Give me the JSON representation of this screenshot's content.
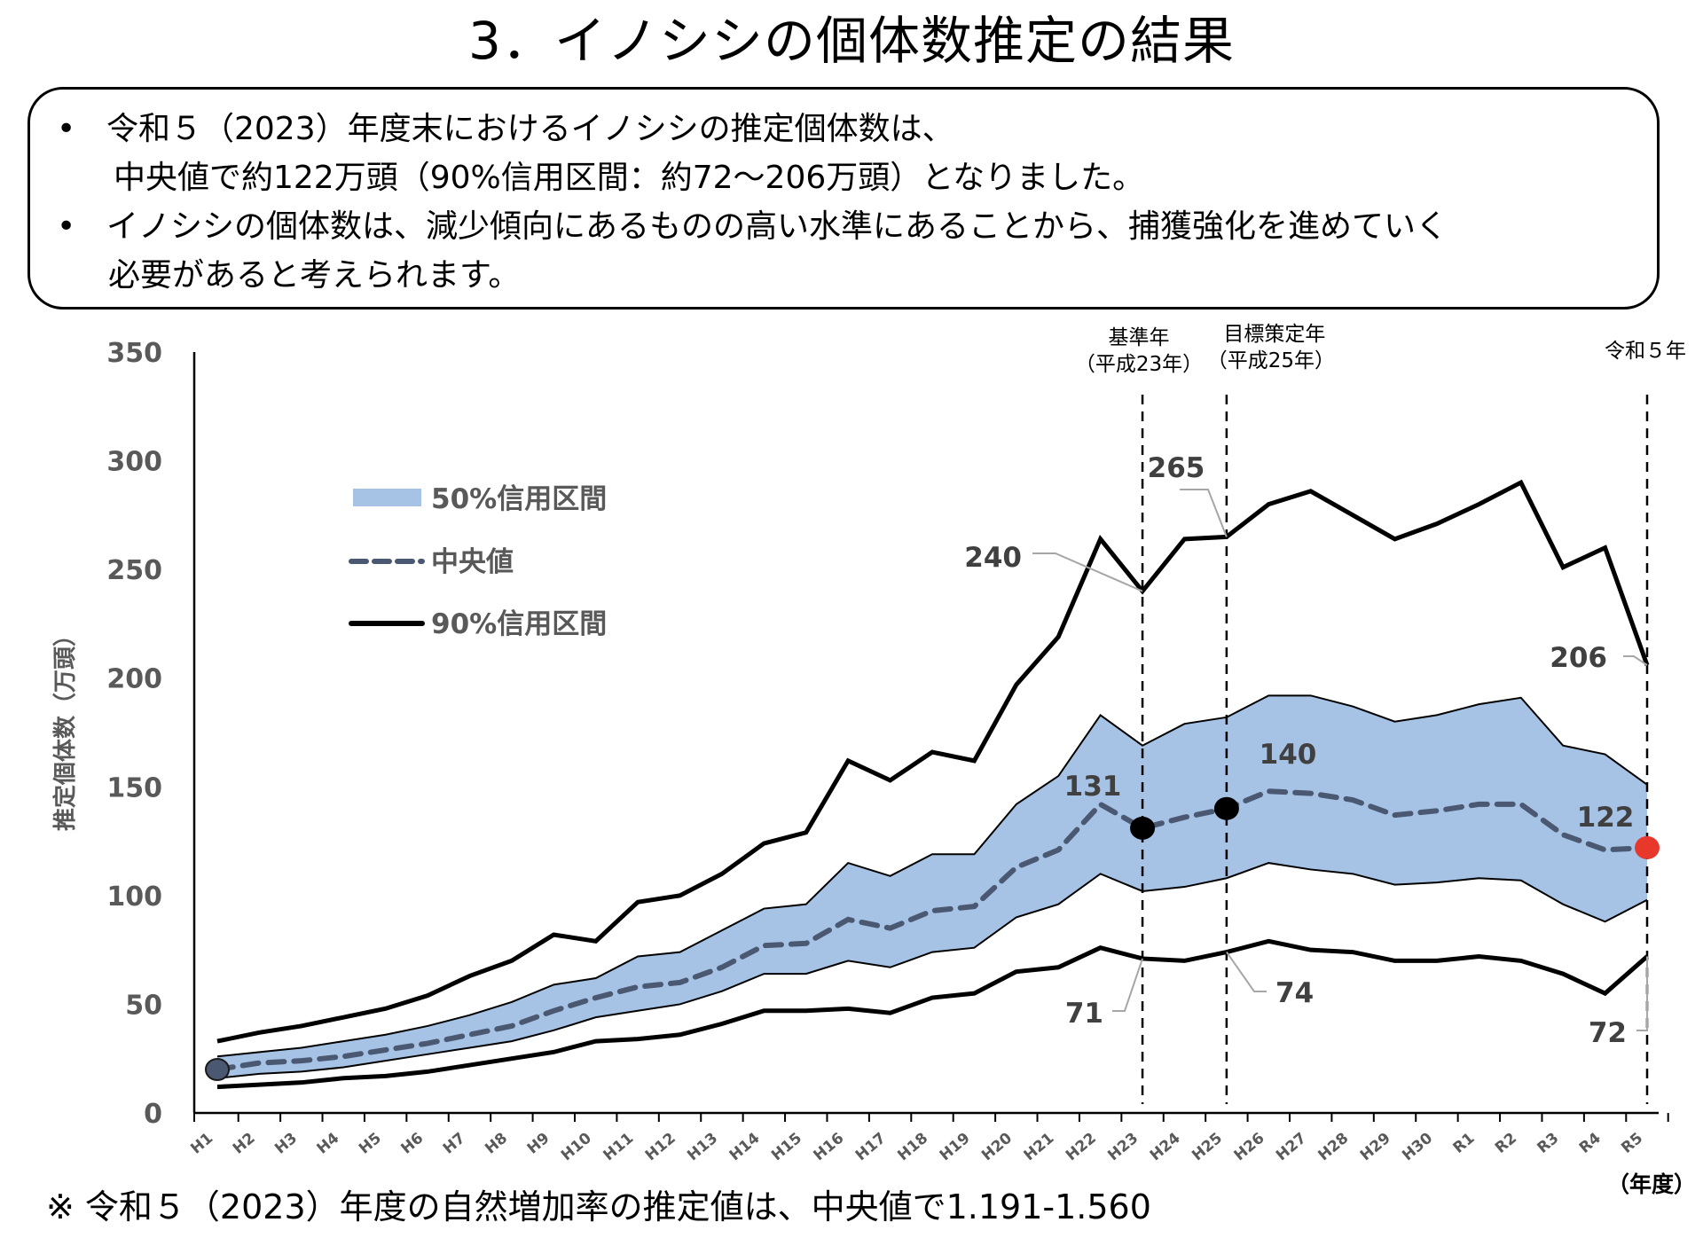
{
  "header": {
    "title": "3．イノシシの個体数推定の結果"
  },
  "summary": {
    "bullet": "•",
    "lines": [
      "令和５（2023）年度末におけるイノシシの推定個体数は、",
      "中央値で約122万頭（90%信用区間：約72～206万頭）となりました。",
      "イノシシの個体数は、減少傾向にあるものの高い水準にあることから、捕獲強化を進めていく",
      "必要があると考えられます。"
    ]
  },
  "footnote": "※ 令和５（2023）年度の自然増加率の推定値は、中央値で1.191-1.560",
  "chart_data": {
    "type": "area",
    "title": "",
    "xlabel": "（年度）",
    "ylabel": "推定個体数（万頭）",
    "ylim": [
      0,
      350
    ],
    "yticks": [
      0,
      50,
      100,
      150,
      200,
      250,
      300,
      350
    ],
    "ytick_labels": [
      "0",
      "50",
      "100",
      "150",
      "200",
      "250",
      "300",
      "350"
    ],
    "grid": false,
    "legend_position": "top-left",
    "categories": [
      "H1",
      "H2",
      "H3",
      "H4",
      "H5",
      "H6",
      "H7",
      "H8",
      "H9",
      "H10",
      "H11",
      "H12",
      "H13",
      "H14",
      "H15",
      "H16",
      "H17",
      "H18",
      "H19",
      "H20",
      "H21",
      "H22",
      "H23",
      "H24",
      "H25",
      "H26",
      "H27",
      "H28",
      "H29",
      "H30",
      "R1",
      "R2",
      "R3",
      "R4",
      "R5"
    ],
    "series": [
      {
        "name": "50%信用区間",
        "kind": "band",
        "color": "#a6c2e4",
        "lower": [
          16,
          18,
          19,
          21,
          24,
          27,
          30,
          33,
          38,
          44,
          47,
          50,
          56,
          64,
          64,
          70,
          67,
          74,
          76,
          90,
          96,
          110,
          102,
          104,
          108,
          115,
          112,
          110,
          105,
          106,
          108,
          107,
          96,
          88,
          98
        ],
        "upper": [
          26,
          28,
          30,
          33,
          36,
          40,
          45,
          51,
          59,
          62,
          72,
          74,
          84,
          94,
          96,
          115,
          109,
          119,
          119,
          142,
          155,
          183,
          169,
          179,
          182,
          192,
          192,
          187,
          180,
          183,
          188,
          191,
          169,
          165,
          151
        ]
      },
      {
        "name": "中央値",
        "kind": "dashed-line",
        "color": "#4a5872",
        "values": [
          20,
          23,
          24,
          26,
          29,
          32,
          36,
          40,
          47,
          53,
          58,
          60,
          67,
          77,
          78,
          89,
          85,
          93,
          95,
          113,
          121,
          142,
          131,
          136,
          140,
          148,
          147,
          144,
          137,
          139,
          142,
          142,
          128,
          121,
          122
        ]
      },
      {
        "name": "90%信用区間",
        "kind": "line",
        "color": "#000000",
        "lower": [
          12,
          13,
          14,
          16,
          17,
          19,
          22,
          25,
          28,
          33,
          34,
          36,
          41,
          47,
          47,
          48,
          46,
          53,
          55,
          65,
          67,
          76,
          71,
          70,
          74,
          79,
          75,
          74,
          70,
          70,
          72,
          70,
          64,
          55,
          72
        ],
        "upper": [
          33,
          37,
          40,
          44,
          48,
          54,
          63,
          70,
          82,
          79,
          97,
          100,
          110,
          124,
          129,
          162,
          153,
          166,
          162,
          197,
          219,
          264,
          240,
          264,
          265,
          280,
          286,
          275,
          264,
          271,
          280,
          290,
          251,
          260,
          206
        ]
      }
    ],
    "reference_lines": [
      {
        "category": "H23",
        "label_line1": "基準年",
        "label_line2": "（平成23年）"
      },
      {
        "category": "H25",
        "label_line1": "目標策定年",
        "label_line2": "（平成25年）"
      },
      {
        "category": "R5",
        "label_line1": "令和５年",
        "label_line2": ""
      }
    ],
    "annotations": [
      {
        "category": "H23",
        "series": "90%信用区間 upper",
        "text": "240"
      },
      {
        "category": "H25",
        "series": "90%信用区間 upper",
        "text": "265"
      },
      {
        "category": "H23",
        "series": "中央値",
        "text": "131"
      },
      {
        "category": "H25",
        "series": "中央値",
        "text": "140"
      },
      {
        "category": "R5",
        "series": "中央値",
        "text": "122",
        "color": "#e8382c"
      },
      {
        "category": "R5",
        "series": "90%信用区間 upper",
        "text": "206"
      },
      {
        "category": "H23",
        "series": "90%信用区間 lower",
        "text": "71"
      },
      {
        "category": "H25",
        "series": "90%信用区間 lower",
        "text": "74"
      },
      {
        "category": "R5",
        "series": "90%信用区間 lower",
        "text": "72"
      }
    ],
    "highlight_points": [
      {
        "category": "H1",
        "value": 20,
        "color": "#4a5872"
      },
      {
        "category": "H23",
        "value": 131,
        "color": "#000000"
      },
      {
        "category": "H25",
        "value": 140,
        "color": "#000000"
      },
      {
        "category": "R5",
        "value": 122,
        "color": "#e8382c"
      }
    ],
    "legend": [
      {
        "label": "50%信用区間",
        "kind": "band",
        "color": "#a6c2e4"
      },
      {
        "label": "中央値",
        "kind": "dashed-line",
        "color": "#4a5872"
      },
      {
        "label": "90%信用区間",
        "kind": "line",
        "color": "#000000"
      }
    ]
  }
}
